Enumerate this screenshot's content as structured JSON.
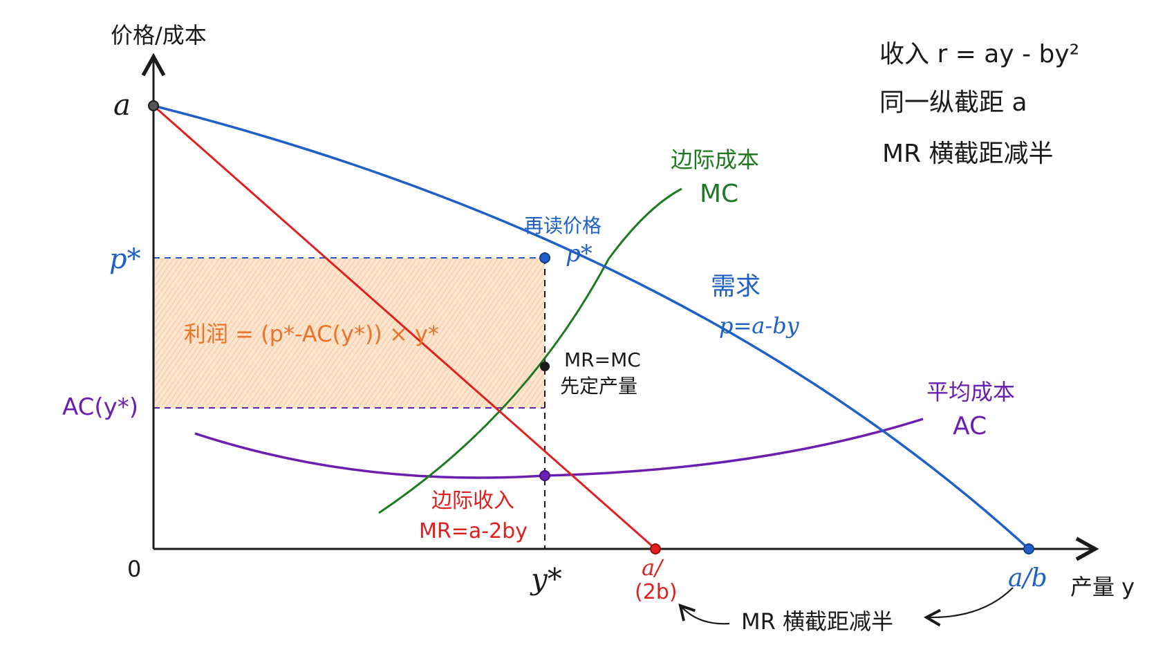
{
  "axes": {
    "y_label": "价格/成本",
    "x_label": "产量 y",
    "origin": "0",
    "y_intercept": "a",
    "p_star": "p*",
    "ac_y_star": "AC(y*)",
    "y_star": "y*",
    "mr_intercept_top": "a/",
    "mr_intercept_bottom": "(2b)",
    "demand_intercept": "a/b"
  },
  "notes": {
    "line1": "收入 r = ay - by²",
    "line2": "同一纵截距 a",
    "line3": "MR 横截距减半"
  },
  "curves": {
    "mc_title": "边际成本",
    "mc_short": "MC",
    "demand_title": "需求",
    "demand_eq": "p=a-by",
    "ac_title": "平均成本",
    "ac_short": "AC",
    "mr_title": "边际收入",
    "mr_eq": "MR=a-2by"
  },
  "annotations": {
    "reread_price": "再读价格",
    "reread_p": "p*",
    "mr_mc": "MR=MC",
    "fix_output": "先定产量",
    "profit": "利润 = (p*-AC(y*)) × y*",
    "halve_arrow": "MR 横截距减半"
  },
  "colors": {
    "demand": "#1f5fc8",
    "mr": "#e02020",
    "mc": "#1e7a22",
    "ac": "#6a1fb0",
    "profit": "#e8762a",
    "axis": "#1a1a1a"
  }
}
